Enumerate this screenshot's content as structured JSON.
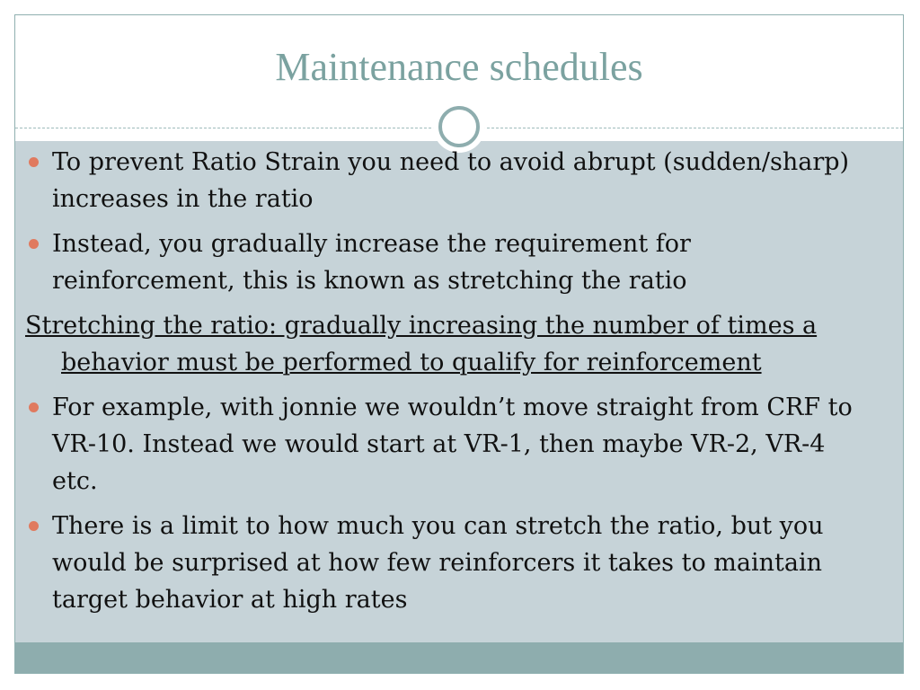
{
  "slide": {
    "title": "Maintenance schedules",
    "accent_color": "#e07a5f",
    "title_color": "#7ba2a0",
    "content_bg": "#c6d3d8",
    "footer_color": "#8eadae",
    "bullets": [
      "To prevent Ratio Strain you need to avoid abrupt (sudden/sharp) increases in the ratio",
      "Instead, you gradually increase the requirement for reinforcement, this is known as stretching the ratio"
    ],
    "definition": "Stretching the ratio: gradually increasing the number of times a behavior must be performed to qualify for reinforcement",
    "bullets_after": [
      "For example, with jonnie we wouldn’t move straight from CRF to VR-10. Instead we would start at VR-1, then maybe VR-2, VR-4 etc.",
      "There is a limit to how much you can stretch the ratio, but you would be surprised at how few reinforcers it takes to maintain target behavior at high rates"
    ]
  }
}
